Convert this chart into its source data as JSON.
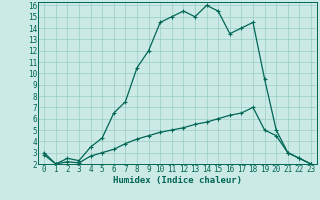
{
  "xlabel": "Humidex (Indice chaleur)",
  "background_color": "#cceae5",
  "grid_color": "#99ccc5",
  "line_color": "#006655",
  "xlim": [
    -0.5,
    23.5
  ],
  "ylim": [
    2,
    16.3
  ],
  "xticks": [
    0,
    1,
    2,
    3,
    4,
    5,
    6,
    7,
    8,
    9,
    10,
    11,
    12,
    13,
    14,
    15,
    16,
    17,
    18,
    19,
    20,
    21,
    22,
    23
  ],
  "yticks": [
    2,
    3,
    4,
    5,
    6,
    7,
    8,
    9,
    10,
    11,
    12,
    13,
    14,
    15,
    16
  ],
  "upper_x": [
    0,
    1,
    2,
    3,
    4,
    5,
    6,
    7,
    8,
    9,
    10,
    11,
    12,
    13,
    14,
    15,
    16,
    17,
    18,
    19,
    20,
    21,
    22,
    23
  ],
  "upper_y": [
    3.0,
    2.0,
    2.5,
    2.3,
    3.5,
    4.3,
    6.5,
    7.5,
    10.5,
    12.0,
    14.5,
    15.0,
    15.5,
    15.0,
    16.0,
    15.5,
    13.5,
    14.0,
    14.5,
    9.5,
    5.0,
    3.0,
    2.5,
    2.0
  ],
  "lower_x": [
    0,
    1,
    2,
    3,
    4,
    5,
    6,
    7,
    8,
    9,
    10,
    11,
    12,
    13,
    14,
    15,
    16,
    17,
    18,
    19,
    20,
    21,
    22,
    23
  ],
  "lower_y": [
    2.8,
    2.0,
    2.2,
    2.1,
    2.7,
    3.0,
    3.3,
    3.8,
    4.2,
    4.5,
    4.8,
    5.0,
    5.2,
    5.5,
    5.7,
    6.0,
    6.3,
    6.5,
    7.0,
    5.0,
    4.5,
    3.0,
    2.5,
    2.0
  ],
  "tick_fontsize": 5.5,
  "xlabel_fontsize": 6.5,
  "marker_size": 2.5,
  "linewidth": 0.9
}
